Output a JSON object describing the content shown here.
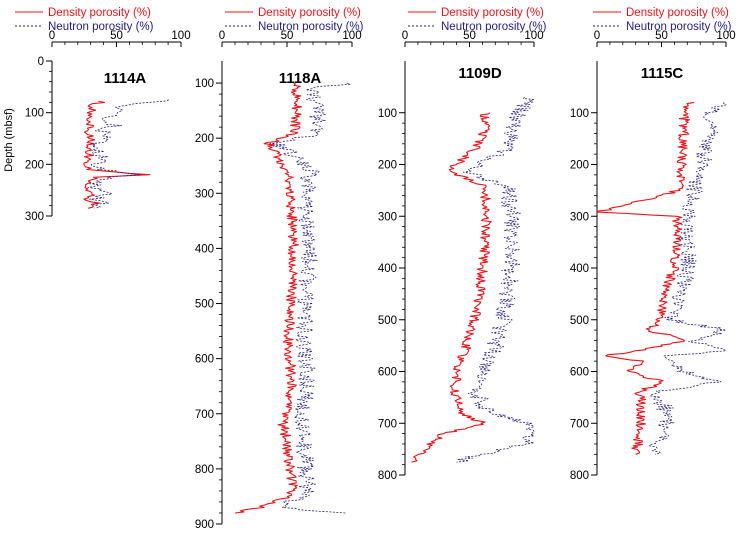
{
  "chart_data": [
    {
      "type": "line",
      "title": "1114A",
      "ylabel": "Depth (mbsf)",
      "xlim": [
        0,
        100
      ],
      "xticks": [
        0,
        50,
        100
      ],
      "ylim": [
        0,
        300
      ],
      "yticks": [
        0,
        100,
        200,
        300
      ],
      "y_inverted": true,
      "legend": [
        "Density porosity (%)",
        "Neutron porosity (%)"
      ],
      "series": [
        {
          "name": "Density porosity (%)",
          "color": "#e8141b",
          "style": "solid",
          "y": [
            78,
            85,
            95,
            105,
            115,
            125,
            135,
            150,
            165,
            180,
            195,
            210,
            220,
            225,
            235,
            245,
            255,
            265,
            275,
            285
          ],
          "x": [
            40,
            32,
            30,
            28,
            26,
            30,
            28,
            29,
            30,
            29,
            28,
            26,
            72,
            35,
            30,
            24,
            32,
            26,
            35,
            28
          ]
        },
        {
          "name": "Neutron porosity (%)",
          "color": "#26217d",
          "style": "dashed",
          "y": [
            75,
            85,
            95,
            105,
            115,
            125,
            135,
            150,
            165,
            180,
            195,
            210,
            220,
            225,
            235,
            245,
            255,
            265,
            275,
            285
          ],
          "x": [
            95,
            55,
            50,
            45,
            42,
            48,
            40,
            38,
            37,
            38,
            36,
            34,
            70,
            45,
            38,
            30,
            42,
            34,
            40,
            33
          ]
        }
      ]
    },
    {
      "type": "line",
      "title": "1118A",
      "xlim": [
        0,
        100
      ],
      "xticks": [
        0,
        50,
        100
      ],
      "ylim": [
        60,
        900
      ],
      "yticks": [
        100,
        200,
        300,
        400,
        500,
        600,
        700,
        800,
        900
      ],
      "y_inverted": true,
      "legend": [
        "Density porosity (%)",
        "Neutron porosity (%)"
      ],
      "series": [
        {
          "name": "Density porosity (%)",
          "color": "#e8141b",
          "style": "solid",
          "y": [
            100,
            110,
            150,
            190,
            210,
            230,
            260,
            300,
            350,
            400,
            450,
            500,
            550,
            600,
            650,
            700,
            720,
            750,
            800,
            830,
            850,
            870,
            880
          ],
          "x": [
            57,
            57,
            58,
            56,
            36,
            42,
            50,
            53,
            54,
            55,
            54,
            53,
            51,
            52,
            54,
            50,
            47,
            50,
            52,
            55,
            52,
            30,
            10
          ]
        },
        {
          "name": "Neutron porosity (%)",
          "color": "#26217d",
          "style": "dashed",
          "y": [
            100,
            110,
            150,
            190,
            210,
            230,
            260,
            300,
            350,
            400,
            450,
            500,
            550,
            600,
            650,
            700,
            720,
            750,
            800,
            830,
            850,
            870,
            880
          ],
          "x": [
            100,
            70,
            72,
            75,
            42,
            55,
            68,
            64,
            66,
            67,
            66,
            65,
            63,
            64,
            66,
            62,
            60,
            63,
            65,
            66,
            63,
            40,
            95
          ]
        }
      ]
    },
    {
      "type": "line",
      "title": "1109D",
      "xlim": [
        0,
        100
      ],
      "xticks": [
        0,
        50,
        100
      ],
      "ylim": [
        0,
        800
      ],
      "yticks": [
        100,
        200,
        300,
        400,
        500,
        600,
        700,
        800
      ],
      "y_inverted": true,
      "legend": [
        "Density porosity (%)",
        "Neutron porosity (%)"
      ],
      "series": [
        {
          "name": "Density porosity (%)",
          "color": "#e8141b",
          "style": "solid",
          "y": [
            100,
            130,
            170,
            210,
            225,
            240,
            280,
            320,
            360,
            400,
            450,
            500,
            550,
            600,
            640,
            680,
            700,
            720,
            740,
            760,
            775
          ],
          "x": [
            62,
            63,
            55,
            35,
            45,
            60,
            64,
            63,
            62,
            60,
            58,
            54,
            48,
            40,
            38,
            45,
            60,
            30,
            20,
            10,
            5
          ]
        },
        {
          "name": "Neutron porosity (%)",
          "color": "#26217d",
          "style": "dashed",
          "y": [
            70,
            100,
            130,
            170,
            210,
            225,
            240,
            280,
            320,
            360,
            400,
            450,
            500,
            550,
            600,
            640,
            680,
            700,
            720,
            740,
            760,
            775
          ],
          "x": [
            98,
            88,
            85,
            80,
            48,
            60,
            78,
            82,
            84,
            83,
            82,
            80,
            76,
            70,
            60,
            55,
            65,
            95,
            100,
            95,
            60,
            40
          ]
        }
      ]
    },
    {
      "type": "line",
      "title": "1115C",
      "xlim": [
        0,
        100
      ],
      "xticks": [
        0,
        50,
        100
      ],
      "ylim": [
        0,
        800
      ],
      "yticks": [
        100,
        200,
        300,
        400,
        500,
        600,
        700,
        800
      ],
      "y_inverted": true,
      "legend": [
        "Density porosity (%)",
        "Neutron porosity (%)"
      ],
      "series": [
        {
          "name": "Density porosity (%)",
          "color": "#e8141b",
          "style": "solid",
          "y": [
            80,
            100,
            150,
            200,
            250,
            292,
            300,
            350,
            400,
            450,
            500,
            520,
            540,
            560,
            570,
            580,
            600,
            620,
            640,
            680,
            720,
            760
          ],
          "x": [
            72,
            68,
            67,
            66,
            64,
            0,
            62,
            62,
            60,
            52,
            48,
            40,
            70,
            30,
            5,
            35,
            25,
            50,
            33,
            35,
            33,
            30
          ]
        },
        {
          "name": "Neutron porosity (%)",
          "color": "#26217d",
          "style": "dashed",
          "y": [
            80,
            100,
            150,
            200,
            250,
            300,
            350,
            400,
            450,
            500,
            520,
            540,
            560,
            570,
            580,
            600,
            620,
            640,
            680,
            720,
            760
          ],
          "x": [
            95,
            90,
            86,
            82,
            75,
            70,
            70,
            70,
            64,
            58,
            100,
            75,
            100,
            55,
            60,
            65,
            95,
            45,
            55,
            50,
            45
          ]
        }
      ]
    }
  ]
}
